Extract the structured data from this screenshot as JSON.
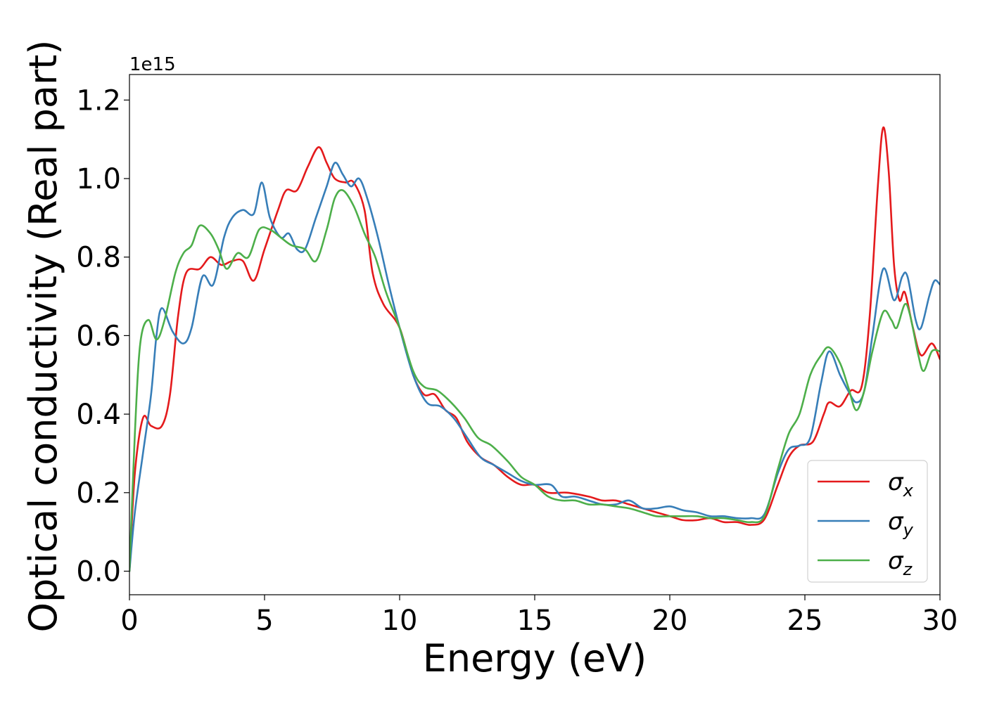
{
  "chart_data": {
    "type": "line",
    "title": "",
    "xlabel": "Energy (eV)",
    "ylabel": "Optical conductivity (Real part)",
    "y_offset_label": "1e15",
    "xlim": [
      0,
      30
    ],
    "ylim": [
      -0.06,
      1.265
    ],
    "xticks": [
      0,
      5,
      10,
      15,
      20,
      25,
      30
    ],
    "xtick_labels": [
      "0",
      "5",
      "10",
      "15",
      "20",
      "25",
      "30"
    ],
    "yticks": [
      0.0,
      0.2,
      0.4,
      0.6,
      0.8,
      1.0,
      1.2
    ],
    "ytick_labels": [
      "0.0",
      "0.2",
      "0.4",
      "0.6",
      "0.8",
      "1.0",
      "1.2"
    ],
    "grid": false,
    "legend_position": "lower-right",
    "series": [
      {
        "name": "σx",
        "legend_base": "σ",
        "legend_sub": "x",
        "color": "#e41a1c",
        "points": [
          [
            0,
            0.0
          ],
          [
            0.2,
            0.25
          ],
          [
            0.5,
            0.39
          ],
          [
            0.8,
            0.37
          ],
          [
            1.2,
            0.37
          ],
          [
            1.5,
            0.45
          ],
          [
            1.8,
            0.65
          ],
          [
            2.1,
            0.76
          ],
          [
            2.6,
            0.77
          ],
          [
            3.0,
            0.8
          ],
          [
            3.4,
            0.78
          ],
          [
            3.8,
            0.79
          ],
          [
            4.2,
            0.79
          ],
          [
            4.6,
            0.74
          ],
          [
            5.0,
            0.82
          ],
          [
            5.5,
            0.92
          ],
          [
            5.8,
            0.97
          ],
          [
            6.2,
            0.97
          ],
          [
            6.6,
            1.03
          ],
          [
            7.0,
            1.08
          ],
          [
            7.3,
            1.04
          ],
          [
            7.6,
            1.0
          ],
          [
            8.0,
            0.99
          ],
          [
            8.3,
            0.99
          ],
          [
            8.7,
            0.92
          ],
          [
            9.0,
            0.76
          ],
          [
            9.4,
            0.68
          ],
          [
            10.0,
            0.62
          ],
          [
            10.5,
            0.5
          ],
          [
            10.9,
            0.45
          ],
          [
            11.3,
            0.45
          ],
          [
            11.7,
            0.41
          ],
          [
            12.1,
            0.39
          ],
          [
            12.5,
            0.33
          ],
          [
            13.0,
            0.29
          ],
          [
            13.5,
            0.27
          ],
          [
            14.0,
            0.24
          ],
          [
            14.5,
            0.22
          ],
          [
            15.0,
            0.22
          ],
          [
            15.5,
            0.2
          ],
          [
            16.2,
            0.2
          ],
          [
            17.0,
            0.19
          ],
          [
            17.5,
            0.18
          ],
          [
            18.0,
            0.18
          ],
          [
            18.5,
            0.17
          ],
          [
            19.0,
            0.16
          ],
          [
            20.0,
            0.14
          ],
          [
            20.5,
            0.13
          ],
          [
            21.0,
            0.13
          ],
          [
            21.5,
            0.135
          ],
          [
            22.0,
            0.125
          ],
          [
            22.5,
            0.125
          ],
          [
            23.0,
            0.118
          ],
          [
            23.5,
            0.132
          ],
          [
            24.0,
            0.22
          ],
          [
            24.4,
            0.29
          ],
          [
            24.8,
            0.32
          ],
          [
            25.3,
            0.33
          ],
          [
            25.7,
            0.4
          ],
          [
            25.9,
            0.43
          ],
          [
            26.3,
            0.42
          ],
          [
            26.7,
            0.46
          ],
          [
            27.1,
            0.47
          ],
          [
            27.4,
            0.65
          ],
          [
            27.7,
            0.98
          ],
          [
            27.9,
            1.13
          ],
          [
            28.1,
            1.02
          ],
          [
            28.3,
            0.78
          ],
          [
            28.5,
            0.69
          ],
          [
            28.7,
            0.71
          ],
          [
            29.0,
            0.62
          ],
          [
            29.3,
            0.55
          ],
          [
            29.7,
            0.58
          ],
          [
            30.0,
            0.54
          ]
        ]
      },
      {
        "name": "σy",
        "legend_base": "σ",
        "legend_sub": "y",
        "color": "#377eb8",
        "points": [
          [
            0,
            0.0
          ],
          [
            0.2,
            0.15
          ],
          [
            0.5,
            0.3
          ],
          [
            0.8,
            0.45
          ],
          [
            1.0,
            0.6
          ],
          [
            1.2,
            0.67
          ],
          [
            1.6,
            0.61
          ],
          [
            2.0,
            0.58
          ],
          [
            2.3,
            0.62
          ],
          [
            2.7,
            0.75
          ],
          [
            3.1,
            0.73
          ],
          [
            3.5,
            0.85
          ],
          [
            3.8,
            0.9
          ],
          [
            4.2,
            0.92
          ],
          [
            4.6,
            0.91
          ],
          [
            4.9,
            0.99
          ],
          [
            5.2,
            0.9
          ],
          [
            5.6,
            0.85
          ],
          [
            5.9,
            0.86
          ],
          [
            6.2,
            0.82
          ],
          [
            6.5,
            0.82
          ],
          [
            6.9,
            0.9
          ],
          [
            7.3,
            0.98
          ],
          [
            7.6,
            1.04
          ],
          [
            7.9,
            1.01
          ],
          [
            8.2,
            0.98
          ],
          [
            8.5,
            1.0
          ],
          [
            8.8,
            0.95
          ],
          [
            9.2,
            0.85
          ],
          [
            9.6,
            0.73
          ],
          [
            10.0,
            0.62
          ],
          [
            10.5,
            0.5
          ],
          [
            11.0,
            0.43
          ],
          [
            11.5,
            0.42
          ],
          [
            12.0,
            0.39
          ],
          [
            12.5,
            0.34
          ],
          [
            13.0,
            0.29
          ],
          [
            13.5,
            0.27
          ],
          [
            14.0,
            0.25
          ],
          [
            14.5,
            0.23
          ],
          [
            15.0,
            0.22
          ],
          [
            15.6,
            0.22
          ],
          [
            16.0,
            0.19
          ],
          [
            16.5,
            0.19
          ],
          [
            17.0,
            0.18
          ],
          [
            17.5,
            0.17
          ],
          [
            18.0,
            0.17
          ],
          [
            18.5,
            0.18
          ],
          [
            19.0,
            0.16
          ],
          [
            19.5,
            0.16
          ],
          [
            20.0,
            0.165
          ],
          [
            20.5,
            0.155
          ],
          [
            21.0,
            0.15
          ],
          [
            21.5,
            0.14
          ],
          [
            22.0,
            0.14
          ],
          [
            22.5,
            0.135
          ],
          [
            23.0,
            0.135
          ],
          [
            23.5,
            0.145
          ],
          [
            24.0,
            0.25
          ],
          [
            24.4,
            0.31
          ],
          [
            24.8,
            0.32
          ],
          [
            25.2,
            0.34
          ],
          [
            25.6,
            0.48
          ],
          [
            25.9,
            0.56
          ],
          [
            26.3,
            0.5
          ],
          [
            26.6,
            0.46
          ],
          [
            26.9,
            0.43
          ],
          [
            27.2,
            0.46
          ],
          [
            27.5,
            0.6
          ],
          [
            27.9,
            0.77
          ],
          [
            28.3,
            0.69
          ],
          [
            28.6,
            0.75
          ],
          [
            28.8,
            0.75
          ],
          [
            29.1,
            0.64
          ],
          [
            29.3,
            0.62
          ],
          [
            29.6,
            0.7
          ],
          [
            29.8,
            0.74
          ],
          [
            30.0,
            0.73
          ]
        ]
      },
      {
        "name": "σz",
        "legend_base": "σ",
        "legend_sub": "z",
        "color": "#4daf4a",
        "points": [
          [
            0,
            0.0
          ],
          [
            0.2,
            0.35
          ],
          [
            0.4,
            0.58
          ],
          [
            0.7,
            0.64
          ],
          [
            1.0,
            0.59
          ],
          [
            1.3,
            0.64
          ],
          [
            1.7,
            0.76
          ],
          [
            2.0,
            0.81
          ],
          [
            2.3,
            0.83
          ],
          [
            2.6,
            0.88
          ],
          [
            3.0,
            0.86
          ],
          [
            3.3,
            0.82
          ],
          [
            3.6,
            0.77
          ],
          [
            4.0,
            0.81
          ],
          [
            4.4,
            0.8
          ],
          [
            4.8,
            0.87
          ],
          [
            5.2,
            0.87
          ],
          [
            5.6,
            0.85
          ],
          [
            6.0,
            0.83
          ],
          [
            6.5,
            0.82
          ],
          [
            6.9,
            0.79
          ],
          [
            7.3,
            0.87
          ],
          [
            7.6,
            0.95
          ],
          [
            7.9,
            0.97
          ],
          [
            8.3,
            0.93
          ],
          [
            8.7,
            0.86
          ],
          [
            9.1,
            0.8
          ],
          [
            9.5,
            0.71
          ],
          [
            10.0,
            0.62
          ],
          [
            10.5,
            0.51
          ],
          [
            10.9,
            0.47
          ],
          [
            11.4,
            0.46
          ],
          [
            11.9,
            0.43
          ],
          [
            12.4,
            0.39
          ],
          [
            12.9,
            0.34
          ],
          [
            13.4,
            0.32
          ],
          [
            14.0,
            0.28
          ],
          [
            14.5,
            0.24
          ],
          [
            15.0,
            0.22
          ],
          [
            15.5,
            0.19
          ],
          [
            16.0,
            0.18
          ],
          [
            16.5,
            0.18
          ],
          [
            17.0,
            0.17
          ],
          [
            17.5,
            0.17
          ],
          [
            18.0,
            0.165
          ],
          [
            18.5,
            0.16
          ],
          [
            19.0,
            0.15
          ],
          [
            19.5,
            0.14
          ],
          [
            20.0,
            0.14
          ],
          [
            20.5,
            0.14
          ],
          [
            21.0,
            0.14
          ],
          [
            21.5,
            0.135
          ],
          [
            22.0,
            0.135
          ],
          [
            22.5,
            0.13
          ],
          [
            23.0,
            0.125
          ],
          [
            23.5,
            0.14
          ],
          [
            24.0,
            0.26
          ],
          [
            24.4,
            0.35
          ],
          [
            24.8,
            0.4
          ],
          [
            25.2,
            0.5
          ],
          [
            25.6,
            0.55
          ],
          [
            25.9,
            0.57
          ],
          [
            26.3,
            0.53
          ],
          [
            26.6,
            0.47
          ],
          [
            26.9,
            0.41
          ],
          [
            27.2,
            0.46
          ],
          [
            27.5,
            0.56
          ],
          [
            27.9,
            0.66
          ],
          [
            28.2,
            0.64
          ],
          [
            28.4,
            0.62
          ],
          [
            28.7,
            0.68
          ],
          [
            28.9,
            0.65
          ],
          [
            29.2,
            0.55
          ],
          [
            29.4,
            0.51
          ],
          [
            29.7,
            0.56
          ],
          [
            30.0,
            0.56
          ]
        ]
      }
    ]
  }
}
